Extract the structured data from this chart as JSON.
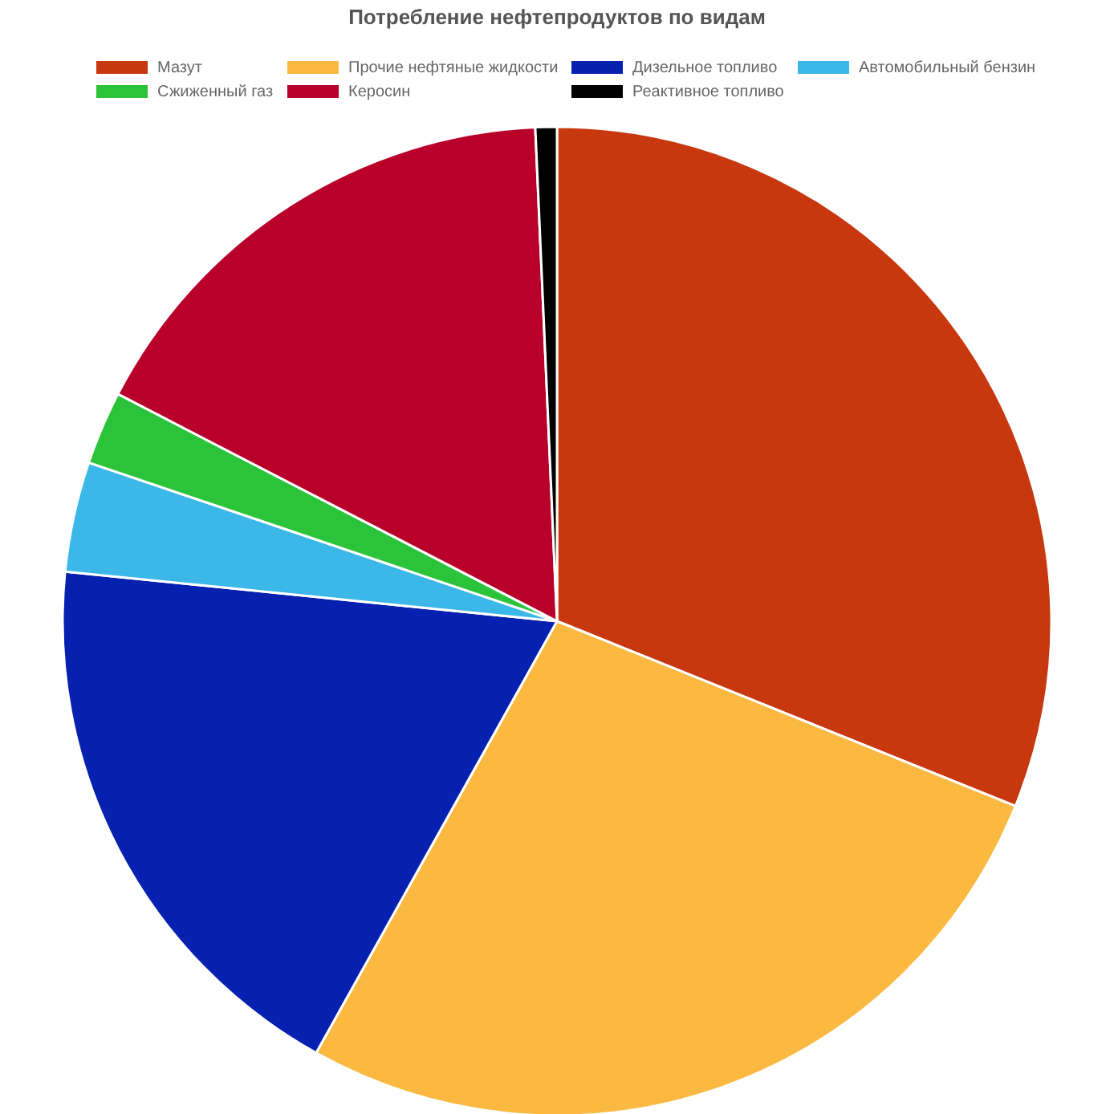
{
  "chart_data": {
    "type": "pie",
    "title": "Потребление нефтепродуктов по видам",
    "categories": [
      "Мазут",
      "Прочие нефтяные жидкости",
      "Дизельное топливо",
      "Автомобильный бензин",
      "Сжиженный газ",
      "Керосин",
      "Реактивное топливо"
    ],
    "values": [
      31.1,
      27.0,
      18.5,
      3.6,
      2.4,
      16.7,
      0.7
    ],
    "colors": [
      "#c8380f",
      "#fbb941",
      "#0620b0",
      "#3bb8e8",
      "#2ac33a",
      "#b8002a",
      "#000000"
    ],
    "legend": "top"
  }
}
